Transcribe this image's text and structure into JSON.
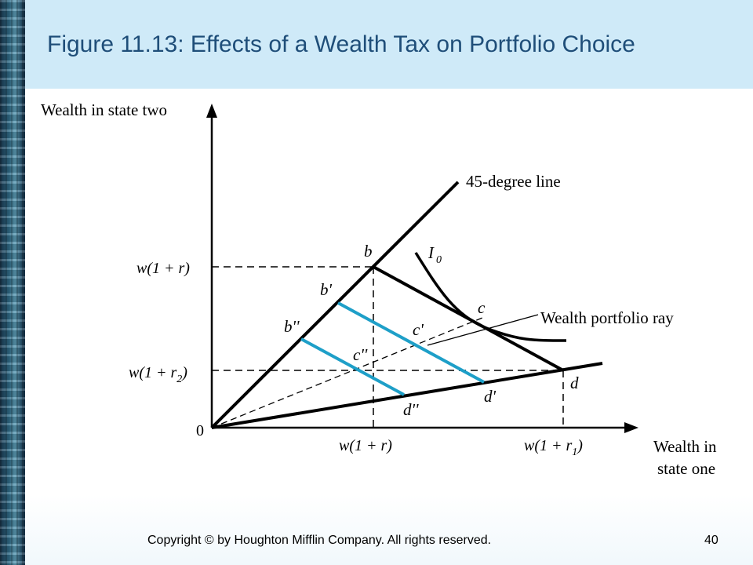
{
  "title": "Figure 11.13:  Effects of a Wealth Tax on Portfolio Choice",
  "footer": {
    "copyright": "Copyright © by Houghton Mifflin Company. All rights reserved.",
    "page": "40"
  },
  "diagram": {
    "y_axis_label": "Wealth in state two",
    "x_axis_label_line1": "Wealth in",
    "x_axis_label_line2": "state one",
    "origin": "0",
    "line_45_label": "45-degree line",
    "ray_label": "Wealth portfolio ray",
    "indifference_label": "I",
    "indifference_sub": "0",
    "y_tick_1": "w(1 + r)",
    "y_tick_2_main": "w(1 + r",
    "y_tick_2_sub": "2",
    "y_tick_2_end": ")",
    "x_tick_1": "w(1 + r)",
    "x_tick_2_main": "w(1 + r",
    "x_tick_2_sub": "1",
    "x_tick_2_end": ")",
    "points": {
      "b": "b",
      "b1": "b'",
      "b2": "b''",
      "c": "c",
      "c1": "c'",
      "c2": "c''",
      "d": "d",
      "d1": "d'",
      "d2": "d''"
    },
    "colors": {
      "budget_lines": "#1e9fc8",
      "main_lines": "#000000"
    }
  }
}
